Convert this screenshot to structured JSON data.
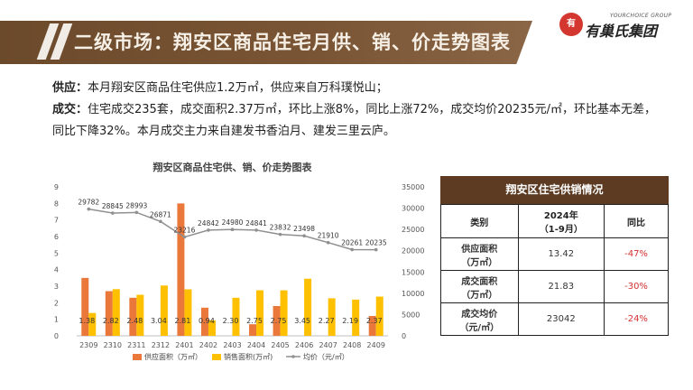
{
  "header": {
    "title": "二级市场：翔安区商品住宅月供、销、价走势图表"
  },
  "logo": {
    "mark": "有",
    "en": "YOURCHOICE GROUP",
    "cn": "有巢氏集团"
  },
  "summary": {
    "supply_label": "供应：",
    "supply_text": "本月翔安区商品住宅供应1.2万㎡，供应来自万科璞悦山；",
    "deal_label": "成交：",
    "deal_text": "住宅成交235套，成交面积2.37万㎡，环比上涨8%，同比上涨72%，成交均价20235元/㎡，环比基本无差，同比下降32%。本月成交主力来自建发书香泊月、建发三里云庐。"
  },
  "table": {
    "title": "翔安区住宅供销情况",
    "headers": [
      "类别",
      "2024年\n（1-9月）",
      "同比"
    ],
    "header_1": "类别",
    "header_2a": "2024年",
    "header_2b": "（1-9月）",
    "header_3": "同比",
    "rows": [
      {
        "cat_a": "供应面积",
        "cat_b": "（万㎡）",
        "value": "13.42",
        "yoy": "-47%"
      },
      {
        "cat_a": "成交面积",
        "cat_b": "（万㎡）",
        "value": "21.83",
        "yoy": "-30%"
      },
      {
        "cat_a": "成交均价",
        "cat_b": "（元/㎡）",
        "value": "23042",
        "yoy": "-24%"
      }
    ]
  },
  "colors": {
    "supply": "#e9783a",
    "sales": "#ffc000",
    "price": "#909090",
    "header_brown": "#5c3b22"
  },
  "chart_data": {
    "type": "bar",
    "title": "翔安区商品住宅供、销、价走势图表",
    "categories": [
      "2309",
      "2310",
      "2311",
      "2312",
      "2401",
      "2402",
      "2403",
      "2404",
      "2405",
      "2406",
      "2407",
      "2408",
      "2409"
    ],
    "series": [
      {
        "name": "供应面积（万㎡）",
        "type": "bar",
        "axis": "left",
        "values": [
          3.5,
          2.7,
          2.3,
          0,
          8.0,
          1.7,
          0,
          0.7,
          1.8,
          0,
          0,
          0,
          1.2
        ]
      },
      {
        "name": "销售面积(万㎡)",
        "type": "bar",
        "axis": "left",
        "values": [
          1.38,
          2.82,
          2.48,
          3.04,
          2.81,
          0.94,
          2.3,
          2.75,
          2.75,
          3.45,
          2.27,
          2.19,
          2.37
        ]
      },
      {
        "name": "均价（元/㎡）",
        "type": "line",
        "axis": "right",
        "values": [
          29782,
          28845,
          28993,
          26871,
          23216,
          24842,
          24980,
          24841,
          23832,
          23498,
          21910,
          20261,
          20235
        ]
      }
    ],
    "sales_labels": [
      "1.38",
      "2.82",
      "2.48",
      "3.04",
      "2.81",
      "0.94",
      "2.30",
      "2.75",
      "2.75",
      "3.45",
      "2.27",
      "2.19",
      "2.37"
    ],
    "price_labels": [
      "29782",
      "28845",
      "28993",
      "26871",
      "23216",
      "24842",
      "24980",
      "24841",
      "23832",
      "23498",
      "21910",
      "20261",
      "20235"
    ],
    "ylim_left": [
      0,
      9
    ],
    "yticks_left": [
      "0",
      "1",
      "2",
      "3",
      "4",
      "5",
      "6",
      "7",
      "8",
      "9"
    ],
    "ylim_right": [
      0,
      35000
    ],
    "yticks_right": [
      "0",
      "5000",
      "10000",
      "15000",
      "20000",
      "25000",
      "30000",
      "35000"
    ],
    "grid": false,
    "legend_position": "bottom"
  }
}
